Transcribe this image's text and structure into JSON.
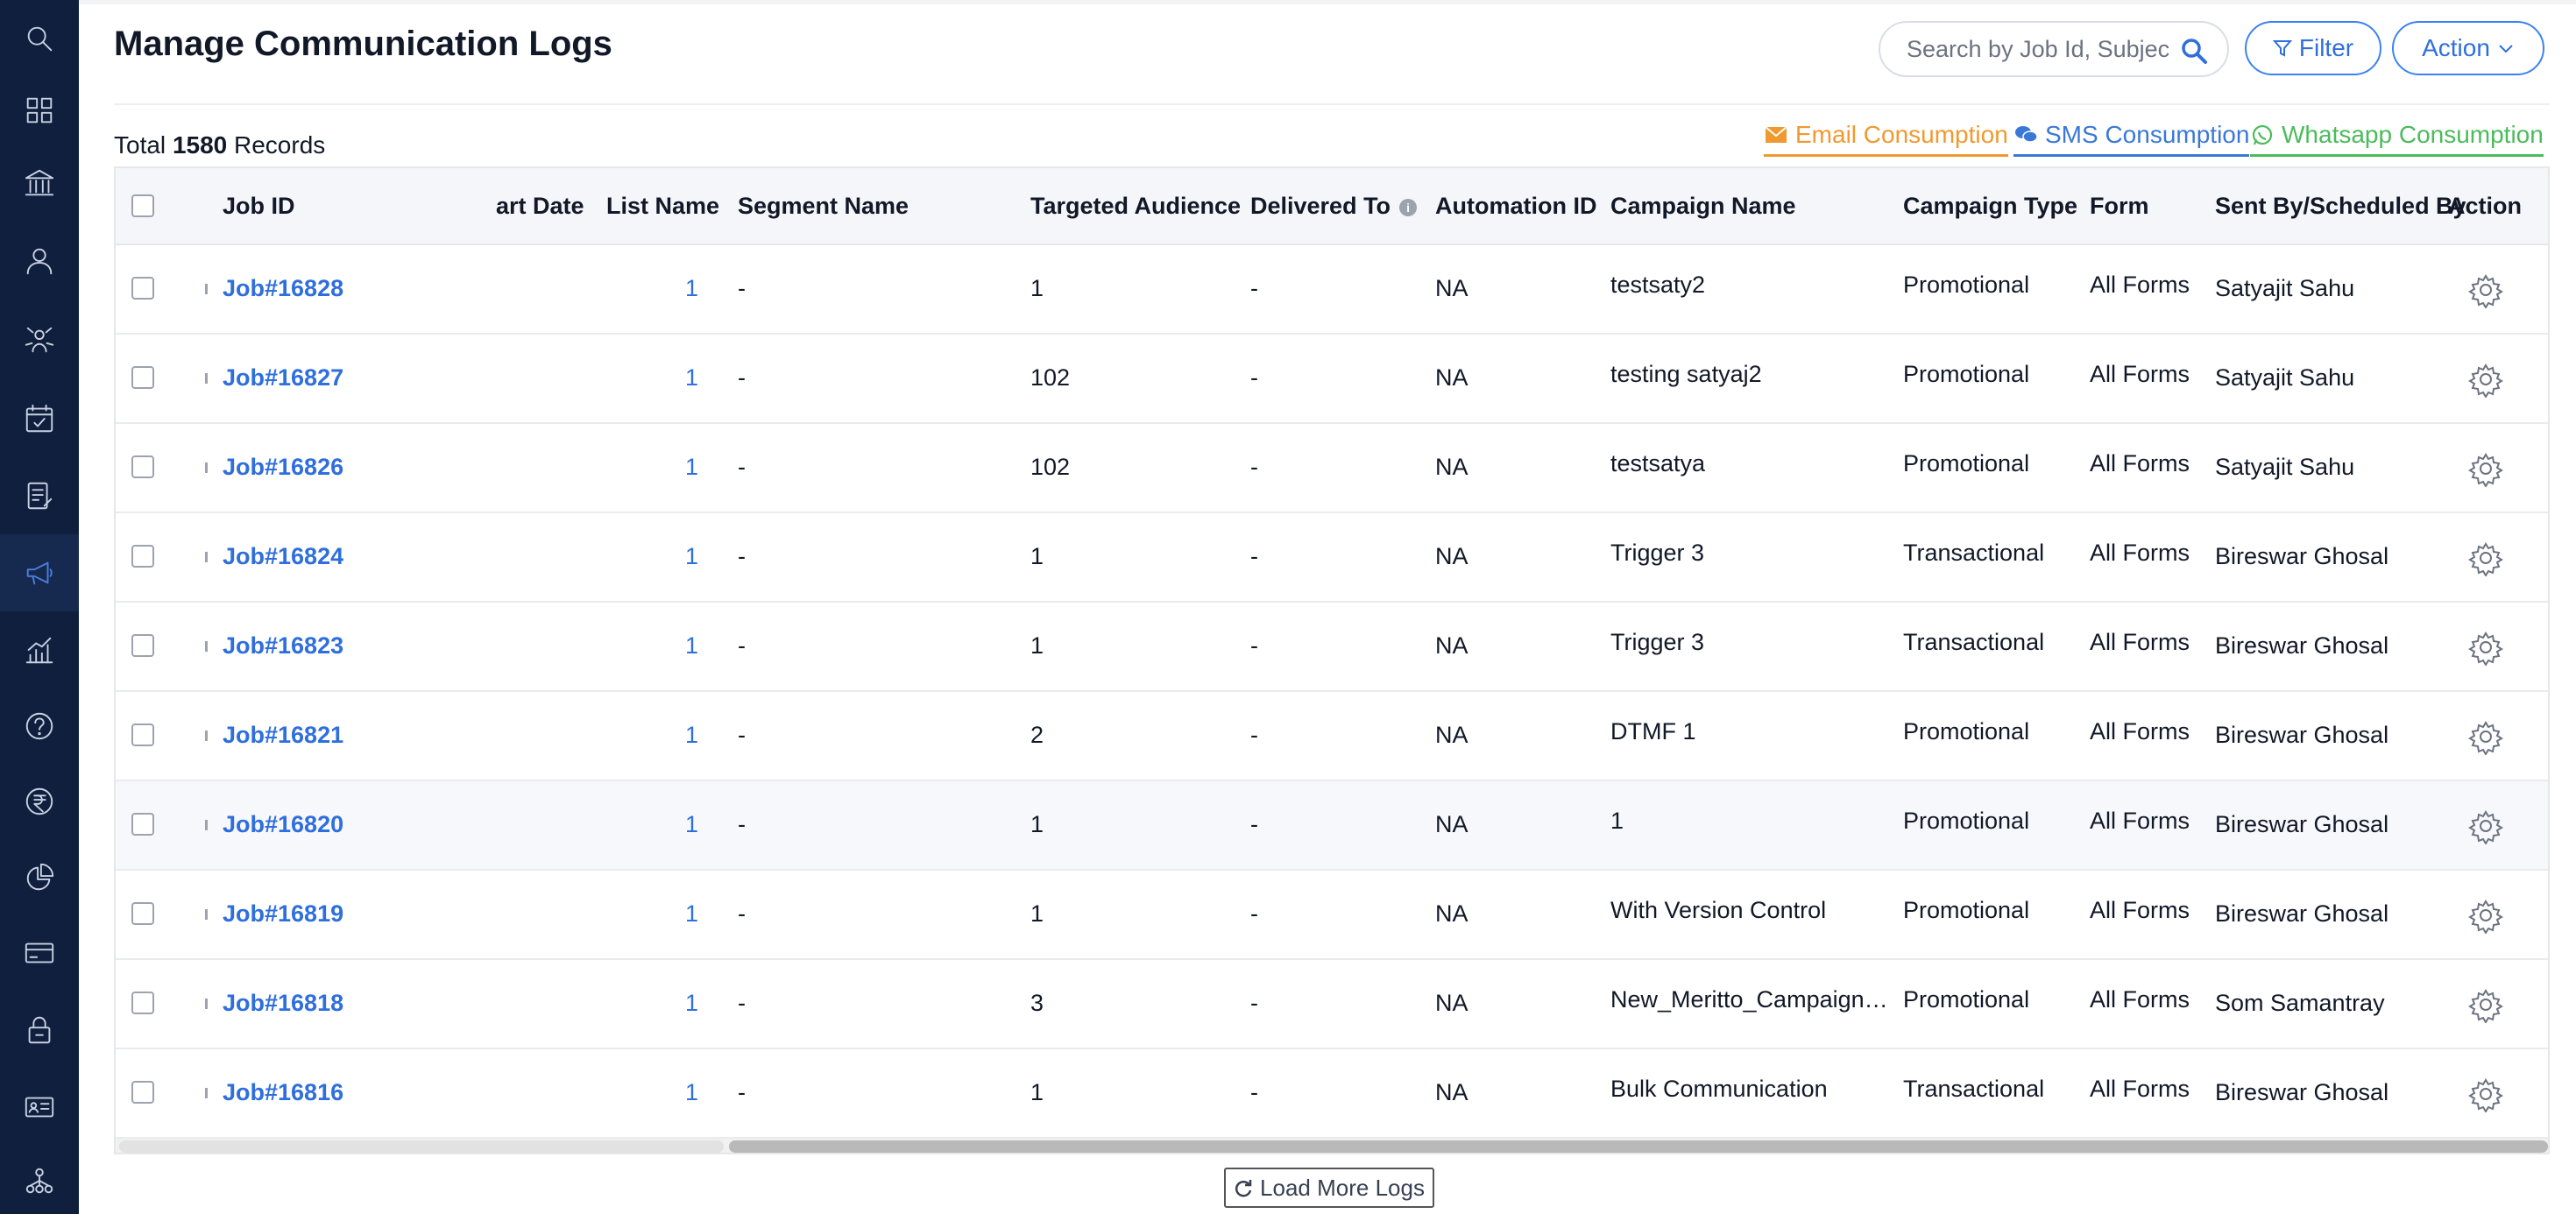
{
  "page": {
    "title": "Manage Communication Logs"
  },
  "search": {
    "placeholder": "Search by Job Id, Subject"
  },
  "toolbar": {
    "filter_label": "Filter",
    "action_label": "Action"
  },
  "summary": {
    "prefix": "Total",
    "count": "1580",
    "suffix": "Records"
  },
  "consumption": {
    "email": "Email Consumption",
    "sms": "SMS Consumption",
    "whatsapp": "Whatsapp Consumption"
  },
  "table": {
    "headers": {
      "job_id": "Job ID",
      "start_date": "art Date",
      "list_name": "List Name",
      "segment_name": "Segment Name",
      "targeted_audience": "Targeted Audience",
      "delivered_to": "Delivered To",
      "automation_id": "Automation ID",
      "campaign_name": "Campaign Name",
      "campaign_type": "Campaign Type",
      "form": "Form",
      "sent_by": "Sent By/Scheduled By",
      "action": "Action"
    },
    "rows": [
      {
        "job_id": "Job#16828",
        "list_name": "1",
        "segment": "-",
        "audience": "1",
        "delivered": "-",
        "automation": "NA",
        "campaign": "testsaty2",
        "type": "Promotional",
        "form": "All Forms",
        "sent_by": "Satyajit Sahu"
      },
      {
        "job_id": "Job#16827",
        "list_name": "1",
        "segment": "-",
        "audience": "102",
        "delivered": "-",
        "automation": "NA",
        "campaign": "testing satyaj2",
        "type": "Promotional",
        "form": "All Forms",
        "sent_by": "Satyajit Sahu"
      },
      {
        "job_id": "Job#16826",
        "list_name": "1",
        "segment": "-",
        "audience": "102",
        "delivered": "-",
        "automation": "NA",
        "campaign": "testsatya",
        "type": "Promotional",
        "form": "All Forms",
        "sent_by": "Satyajit Sahu"
      },
      {
        "job_id": "Job#16824",
        "list_name": "1",
        "segment": "-",
        "audience": "1",
        "delivered": "-",
        "automation": "NA",
        "campaign": "Trigger 3",
        "type": "Transactional",
        "form": "All Forms",
        "sent_by": "Bireswar Ghosal"
      },
      {
        "job_id": "Job#16823",
        "list_name": "1",
        "segment": "-",
        "audience": "1",
        "delivered": "-",
        "automation": "NA",
        "campaign": "Trigger 3",
        "type": "Transactional",
        "form": "All Forms",
        "sent_by": "Bireswar Ghosal"
      },
      {
        "job_id": "Job#16821",
        "list_name": "1",
        "segment": "-",
        "audience": "2",
        "delivered": "-",
        "automation": "NA",
        "campaign": "DTMF 1",
        "type": "Promotional",
        "form": "All Forms",
        "sent_by": "Bireswar Ghosal"
      },
      {
        "job_id": "Job#16820",
        "list_name": "1",
        "segment": "-",
        "audience": "1",
        "delivered": "-",
        "automation": "NA",
        "campaign": "1",
        "type": "Promotional",
        "form": "All Forms",
        "sent_by": "Bireswar Ghosal"
      },
      {
        "job_id": "Job#16819",
        "list_name": "1",
        "segment": "-",
        "audience": "1",
        "delivered": "-",
        "automation": "NA",
        "campaign": "With Version Control",
        "type": "Promotional",
        "form": "All Forms",
        "sent_by": "Bireswar Ghosal"
      },
      {
        "job_id": "Job#16818",
        "list_name": "1",
        "segment": "-",
        "audience": "3",
        "delivered": "-",
        "automation": "NA",
        "campaign": "New_Meritto_Campaign…",
        "type": "Promotional",
        "form": "All Forms",
        "sent_by": "Som Samantray"
      },
      {
        "job_id": "Job#16816",
        "list_name": "1",
        "segment": "-",
        "audience": "1",
        "delivered": "-",
        "automation": "NA",
        "campaign": "Bulk Communication",
        "type": "Transactional",
        "form": "All Forms",
        "sent_by": "Bireswar Ghosal"
      }
    ]
  },
  "footer": {
    "load_more": "Load More Logs"
  },
  "sidebar": {
    "icons": [
      "search-icon",
      "dashboard-icon",
      "institution-icon",
      "user-icon",
      "network-icon",
      "calendar-check-icon",
      "report-icon",
      "megaphone-icon",
      "analytics-icon",
      "help-icon",
      "rupee-icon",
      "pie-chart-icon",
      "card-icon",
      "lock-icon",
      "id-card-icon",
      "hierarchy-icon"
    ],
    "active": "megaphone-icon"
  },
  "colors": {
    "sidebar_bg": "#0f1f3d",
    "accent_blue": "#2f6fdd",
    "email_orange": "#f0992f",
    "whatsapp_green": "#4cbb5c"
  }
}
